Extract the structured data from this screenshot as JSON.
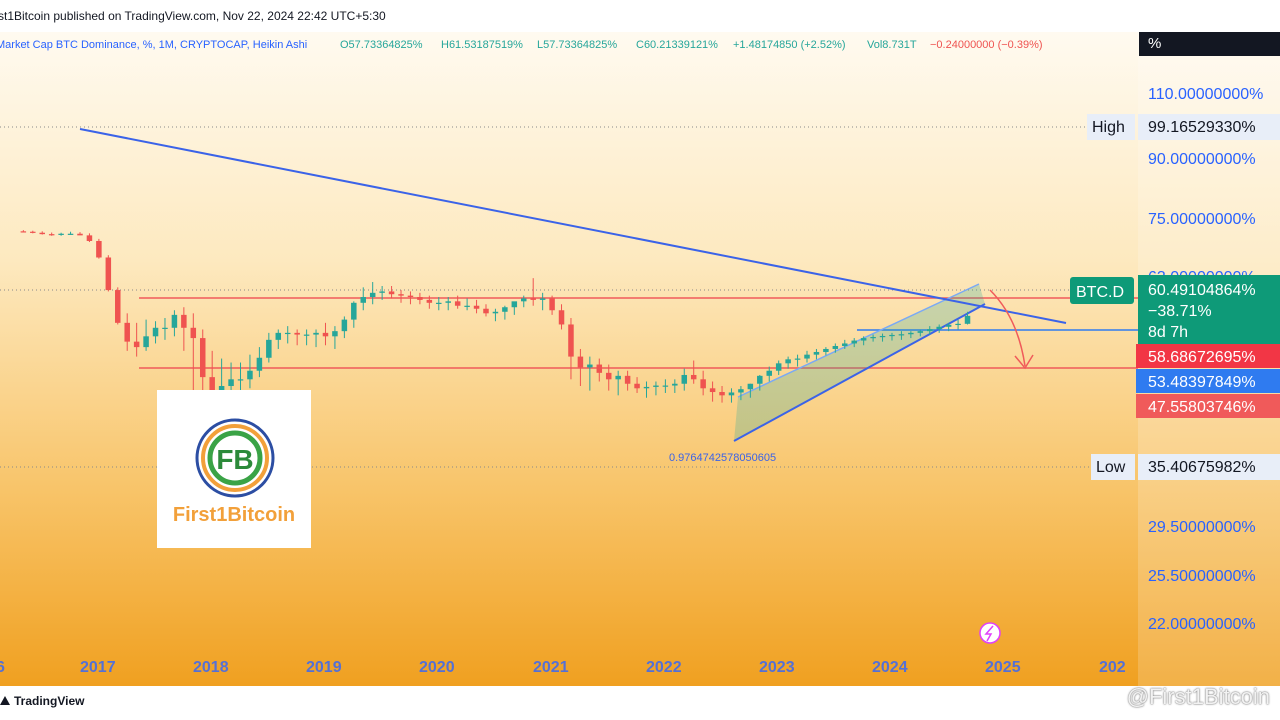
{
  "header": {
    "published": "rst1Bitcoin published on TradingView.com, Nov 22, 2024 22:42 UTC+5:30",
    "legend_title": "Market Cap BTC Dominance, %, 1M, CRYPTOCAP, Heikin Ashi",
    "open": "O57.73364825%",
    "high": "H61.53187519%",
    "low": "L57.73364825%",
    "close": "C60.21339121%",
    "change": "+1.48174850 (+2.52%)",
    "vol": "Vol8.731T",
    "vol_change": "−0.24000000 (−0.39%)"
  },
  "scale": {
    "unit_label": "%",
    "ticks": [
      "110.00000000%",
      "90.00000000%",
      "75.00000000%",
      "63.00000000%",
      "29.50000000%",
      "25.50000000%",
      "22.00000000%"
    ],
    "high_label": "High",
    "high_value": "99.16529330%",
    "low_label": "Low",
    "low_value": "35.40675982%",
    "symbol_tag": "BTC.D",
    "price": "60.49104864%",
    "price_change": "−38.71%",
    "countdown": "8d 7h",
    "levels": [
      "58.68672695%",
      "53.48397849%",
      "47.55803746%"
    ]
  },
  "annotation": "0.9764742578050605",
  "x_labels": [
    "6",
    "2017",
    "2018",
    "2019",
    "2020",
    "2021",
    "2022",
    "2023",
    "2024",
    "2025",
    "202"
  ],
  "brand": {
    "tv_logo": "TradingView",
    "logo_text": "First1Bitcoin",
    "watermark": "@First1Bitcoin"
  },
  "colors": {
    "up": "#26a69a",
    "down": "#ef5350",
    "trendline": "#3b63e8",
    "resistance": "#f05a5a",
    "support": "#2f7bf0",
    "accent_green": "#0e9a78",
    "bg_top": "#fffaf0",
    "bg_bottom": "#f0a020"
  },
  "chart_data": {
    "type": "candlestick",
    "symbol": "BTC.D",
    "timeframe": "1M",
    "style": "Heikin Ashi",
    "y_scale": "log",
    "x": [
      "2016-07",
      "2016-08",
      "2016-09",
      "2016-10",
      "2016-11",
      "2016-12",
      "2017-01",
      "2017-02",
      "2017-03",
      "2017-04",
      "2017-05",
      "2017-06",
      "2017-07",
      "2017-08",
      "2017-09",
      "2017-10",
      "2017-11",
      "2017-12",
      "2018-01",
      "2018-02",
      "2018-03",
      "2018-04",
      "2018-05",
      "2018-06",
      "2018-07",
      "2018-08",
      "2018-09",
      "2018-10",
      "2018-11",
      "2018-12",
      "2019-01",
      "2019-02",
      "2019-03",
      "2019-04",
      "2019-05",
      "2019-06",
      "2019-07",
      "2019-08",
      "2019-09",
      "2019-10",
      "2019-11",
      "2019-12",
      "2020-01",
      "2020-02",
      "2020-03",
      "2020-04",
      "2020-05",
      "2020-06",
      "2020-07",
      "2020-08",
      "2020-09",
      "2020-10",
      "2020-11",
      "2020-12",
      "2021-01",
      "2021-02",
      "2021-03",
      "2021-04",
      "2021-05",
      "2021-06",
      "2021-07",
      "2021-08",
      "2021-09",
      "2021-10",
      "2021-11",
      "2021-12",
      "2022-01",
      "2022-02",
      "2022-03",
      "2022-04",
      "2022-05",
      "2022-06",
      "2022-07",
      "2022-08",
      "2022-09",
      "2022-10",
      "2022-11",
      "2022-12",
      "2023-01",
      "2023-02",
      "2023-03",
      "2023-04",
      "2023-05",
      "2023-06",
      "2023-07",
      "2023-08",
      "2023-09",
      "2023-10",
      "2023-11",
      "2023-12",
      "2024-01",
      "2024-02",
      "2024-03",
      "2024-04",
      "2024-05",
      "2024-06",
      "2024-07",
      "2024-08",
      "2024-09",
      "2024-10",
      "2024-11"
    ],
    "open": [
      94.2,
      94.0,
      93.5,
      92.8,
      92.5,
      93.0,
      93.0,
      92.2,
      89.5,
      82.0,
      69.0,
      58.0,
      52.5,
      51.0,
      54.0,
      56.5,
      56.5,
      60.5,
      56.5,
      53.5,
      43.5,
      40.5,
      41.5,
      43.0,
      43.0,
      45.0,
      48.2,
      53.0,
      55.0,
      55.0,
      54.5,
      54.5,
      55.0,
      54.0,
      55.5,
      59.0,
      64.5,
      66.5,
      68.0,
      68.5,
      67.5,
      67.0,
      66.5,
      65.5,
      64.5,
      64.5,
      65.0,
      63.5,
      63.5,
      62.5,
      61.0,
      61.5,
      63.0,
      65.0,
      66.0,
      65.5,
      66.0,
      62.0,
      57.5,
      48.5,
      45.8,
      46.5,
      44.5,
      43.0,
      43.8,
      42.0,
      41.0,
      41.3,
      41.6,
      41.6,
      42.0,
      44.0,
      43.0,
      41.0,
      40.2,
      39.5,
      40.1,
      40.8,
      42.0,
      43.8,
      45.0,
      46.8,
      47.8,
      48.0,
      49.0,
      49.7,
      50.5,
      51.3,
      52.0,
      52.8,
      53.5,
      53.8,
      54.1,
      54.4,
      54.6,
      55.0,
      55.5,
      56.1,
      56.8,
      57.4,
      57.7
    ],
    "high": [
      94.8,
      94.5,
      94.2,
      93.6,
      93.5,
      94.0,
      93.8,
      93.2,
      90.5,
      83.0,
      70.0,
      61.0,
      58.0,
      59.0,
      58.5,
      59.5,
      62.0,
      63.0,
      61.0,
      56.0,
      50.0,
      48.0,
      47.0,
      47.0,
      49.0,
      51.0,
      55.0,
      56.0,
      57.0,
      56.0,
      56.0,
      56.0,
      58.0,
      57.0,
      60.0,
      65.0,
      70.0,
      72.0,
      70.5,
      70.5,
      69.0,
      68.5,
      68.0,
      67.0,
      66.5,
      66.5,
      67.0,
      66.0,
      65.5,
      64.0,
      62.5,
      63.5,
      64.5,
      67.0,
      73.5,
      68.0,
      67.0,
      64.0,
      59.5,
      50.5,
      48.5,
      48.0,
      46.5,
      45.0,
      45.0,
      43.5,
      42.5,
      42.5,
      43.0,
      43.0,
      45.5,
      47.5,
      45.0,
      42.5,
      41.5,
      41.0,
      41.5,
      42.0,
      44.0,
      46.0,
      47.5,
      48.5,
      49.0,
      50.0,
      50.5,
      51.0,
      52.0,
      53.0,
      53.5,
      54.0,
      54.5,
      54.8,
      55.0,
      55.5,
      55.5,
      56.0,
      57.0,
      57.5,
      58.0,
      59.0,
      61.5
    ],
    "low": [
      93.8,
      93.2,
      92.6,
      92.0,
      92.0,
      92.5,
      92.3,
      89.0,
      81.5,
      68.5,
      57.5,
      50.0,
      48.5,
      50.0,
      52.0,
      53.0,
      54.0,
      50.0,
      38.0,
      34.5,
      36.0,
      37.0,
      38.5,
      40.5,
      41.0,
      43.5,
      47.0,
      50.5,
      52.0,
      51.5,
      51.5,
      51.0,
      51.5,
      50.5,
      53.5,
      56.5,
      62.0,
      64.0,
      65.5,
      66.0,
      64.5,
      64.0,
      64.0,
      62.5,
      62.0,
      62.0,
      62.5,
      62.0,
      61.0,
      60.0,
      58.5,
      59.0,
      60.5,
      63.0,
      63.5,
      62.0,
      60.5,
      56.0,
      43.0,
      41.5,
      40.5,
      42.5,
      40.5,
      39.5,
      40.5,
      40.0,
      39.0,
      39.5,
      40.0,
      40.0,
      40.5,
      42.0,
      39.5,
      38.2,
      38.0,
      38.0,
      38.5,
      39.0,
      40.5,
      42.5,
      44.0,
      45.5,
      46.0,
      47.0,
      47.8,
      48.8,
      49.5,
      50.5,
      51.0,
      51.5,
      52.5,
      52.5,
      52.8,
      53.0,
      53.5,
      54.0,
      54.5,
      55.0,
      55.5,
      56.0,
      57.5
    ],
    "close": [
      94.0,
      93.5,
      92.8,
      92.5,
      93.0,
      93.0,
      92.2,
      89.5,
      82.0,
      69.0,
      58.0,
      52.5,
      51.0,
      54.0,
      56.5,
      56.5,
      60.5,
      56.5,
      53.5,
      43.5,
      40.5,
      41.5,
      43.0,
      43.0,
      45.0,
      48.2,
      53.0,
      55.0,
      55.0,
      54.5,
      54.5,
      55.0,
      54.0,
      55.5,
      59.0,
      64.5,
      66.5,
      68.0,
      68.5,
      67.5,
      67.0,
      66.5,
      65.5,
      64.5,
      64.5,
      65.0,
      63.5,
      63.5,
      62.5,
      61.0,
      61.5,
      63.0,
      65.0,
      66.0,
      65.5,
      66.0,
      62.0,
      57.5,
      48.5,
      45.8,
      46.5,
      44.5,
      43.0,
      43.8,
      42.0,
      41.0,
      41.3,
      41.6,
      41.6,
      42.0,
      44.0,
      43.0,
      41.0,
      40.2,
      39.5,
      40.1,
      40.8,
      42.0,
      43.8,
      45.0,
      46.8,
      47.8,
      48.0,
      49.0,
      49.7,
      50.5,
      51.3,
      52.0,
      52.8,
      53.5,
      53.8,
      54.1,
      54.4,
      54.6,
      55.0,
      55.5,
      56.1,
      56.8,
      57.4,
      57.7,
      60.2
    ],
    "horizontal_levels": [
      63.0,
      58.68672695,
      53.48397849,
      47.55803746
    ],
    "all_time_high": 99.1652933,
    "all_time_low": 35.40675982,
    "last_price": 60.49104864
  }
}
